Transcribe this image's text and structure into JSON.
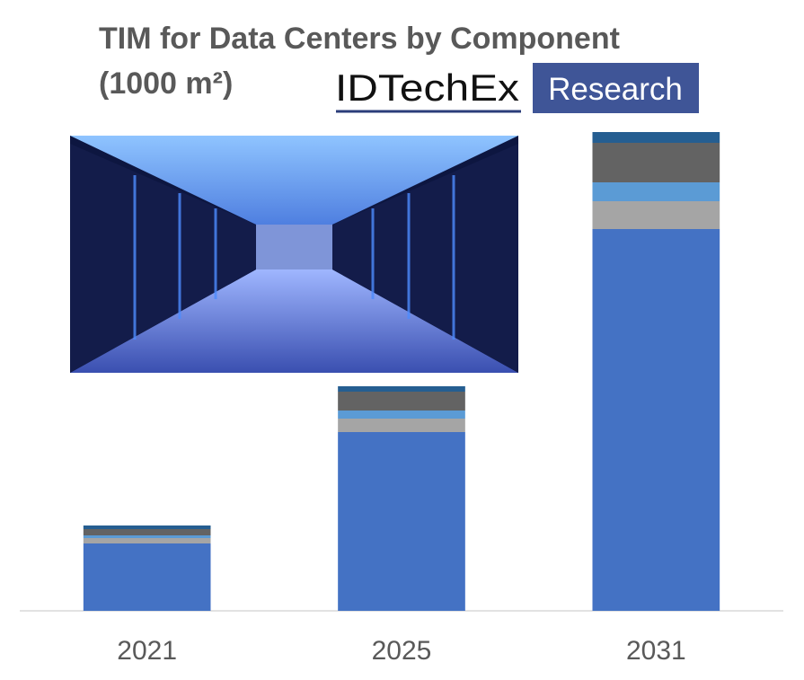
{
  "chart_data": {
    "type": "stacked-bar",
    "title": "TIM for Data Centers by Component",
    "subtitle": "(1000 m²)",
    "categories": [
      "2021",
      "2025",
      "2031"
    ],
    "series": [
      {
        "color": "#4472c4",
        "values": [
          75,
          199,
          425
        ]
      },
      {
        "color": "#a5a5a5",
        "values": [
          6,
          15,
          31
        ]
      },
      {
        "color": "#5b9bd5",
        "values": [
          3,
          9,
          21
        ]
      },
      {
        "color": "#636363",
        "values": [
          7,
          21,
          44
        ]
      },
      {
        "color": "#255e91",
        "values": [
          4,
          6,
          12
        ]
      }
    ]
  },
  "logo": {
    "brand": "IDTechEx",
    "tag": "Research"
  }
}
